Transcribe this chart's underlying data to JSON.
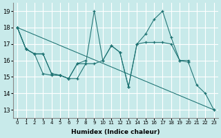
{
  "xlabel": "Humidex (Indice chaleur)",
  "bg_color": "#c8eaea",
  "grid_color": "#ffffff",
  "line_color": "#1a7070",
  "xlim": [
    -0.5,
    23.5
  ],
  "ylim": [
    12.5,
    19.5
  ],
  "yticks": [
    13,
    14,
    15,
    16,
    17,
    18,
    19
  ],
  "xtick_labels": [
    "0",
    "1",
    "2",
    "3",
    "4",
    "5",
    "6",
    "7",
    "8",
    "9",
    "10",
    "11",
    "12",
    "13",
    "14",
    "15",
    "16",
    "17",
    "18",
    "19",
    "20",
    "21",
    "22",
    "23"
  ],
  "line1": {
    "x": [
      0,
      1,
      2,
      3,
      4,
      5,
      6,
      7,
      8,
      9,
      10,
      11,
      12,
      13,
      14,
      15,
      16,
      17,
      18,
      19,
      20,
      21,
      22,
      23
    ],
    "y": [
      18.0,
      16.7,
      16.4,
      16.4,
      15.2,
      15.1,
      14.9,
      15.8,
      15.8,
      19.0,
      16.0,
      16.9,
      16.5,
      14.4,
      17.0,
      17.6,
      18.5,
      19.0,
      17.4,
      16.0,
      15.9,
      14.5,
      14.0,
      13.0
    ]
  },
  "line2": {
    "x": [
      0,
      1,
      2,
      3,
      4,
      5,
      6,
      7,
      8,
      9,
      10,
      11,
      12,
      13,
      14,
      15,
      16,
      17,
      18,
      19,
      20
    ],
    "y": [
      18.0,
      16.7,
      16.4,
      16.4,
      15.2,
      15.1,
      14.9,
      14.9,
      15.8,
      15.8,
      16.0,
      16.9,
      16.5,
      14.4,
      17.0,
      17.1,
      17.1,
      17.1,
      17.0,
      16.0,
      16.0
    ]
  },
  "line3": {
    "x": [
      0,
      1,
      2,
      3,
      4,
      5,
      6,
      7,
      8
    ],
    "y": [
      18.0,
      16.7,
      16.4,
      15.2,
      15.1,
      15.1,
      14.9,
      15.8,
      16.0
    ]
  },
  "line4": {
    "x": [
      0,
      23
    ],
    "y": [
      18.0,
      13.0
    ]
  }
}
